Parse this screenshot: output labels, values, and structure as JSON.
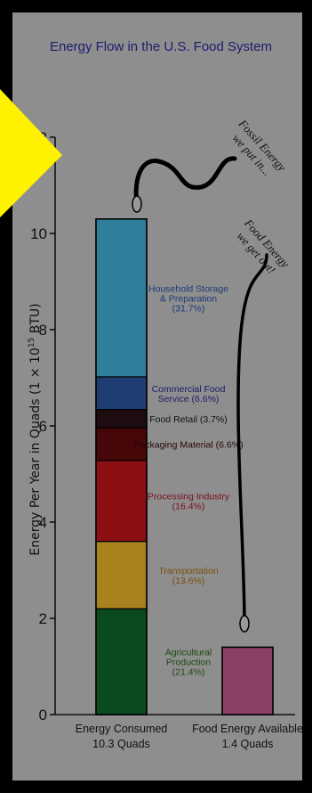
{
  "chart_data": {
    "type": "bar",
    "stacked": true,
    "title": "Energy Flow in the U.S. Food System",
    "ylabel": "Energy Per Year in Quads (1 × 10^15 BTU)",
    "ylim": [
      0,
      12
    ],
    "yticks": [
      0,
      2,
      4,
      6,
      8,
      10,
      12
    ],
    "categories": [
      {
        "line1": "Energy Consumed",
        "line2": "10.3 Quads"
      },
      {
        "line1": "Food Energy Available",
        "line2": "1.4 Quads"
      }
    ],
    "stack": [
      {
        "name": [
          "Agricultural",
          "Production",
          "(21.4%)"
        ],
        "bottom": 0,
        "top": 2.2,
        "color": "#0a4a1e",
        "label_color": "#1d4a10"
      },
      {
        "name": [
          "Transportation",
          "(13.6%)"
        ],
        "bottom": 2.2,
        "top": 3.6,
        "color": "#a8821c",
        "label_color": "#7a4f10"
      },
      {
        "name": [
          "Processing Industry",
          "(16.4%)"
        ],
        "bottom": 3.6,
        "top": 5.28,
        "color": "#8c0f14",
        "label_color": "#7a0e1c"
      },
      {
        "name": [
          "Packaging Material (6.6%)"
        ],
        "bottom": 5.28,
        "top": 5.96,
        "color": "#470708",
        "label_color": "#2a0606"
      },
      {
        "name": [
          "Food Retail (3.7%)"
        ],
        "bottom": 5.96,
        "top": 6.34,
        "color": "#1e0d10",
        "label_color": "#111111"
      },
      {
        "name": [
          "Commercial Food",
          "Service (6.6%)"
        ],
        "bottom": 6.34,
        "top": 7.02,
        "color": "#1f3d72",
        "label_color": "#1a1a66"
      },
      {
        "name": [
          "Household Storage",
          "& Preparation",
          "(31.7%)"
        ],
        "bottom": 7.02,
        "top": 10.3,
        "color": "#2f7f9c",
        "label_color": "#1a3a78"
      }
    ],
    "food_energy": {
      "value": 1.4,
      "color": "#8c3f64"
    },
    "annotations": {
      "fossil": [
        "Fossil Energy",
        "we put in..."
      ],
      "food": [
        "Food Energy",
        "we get out!"
      ]
    }
  },
  "colors": {
    "background": "#8e8e8e",
    "frame": "#000000",
    "highlight": "#fff200"
  }
}
